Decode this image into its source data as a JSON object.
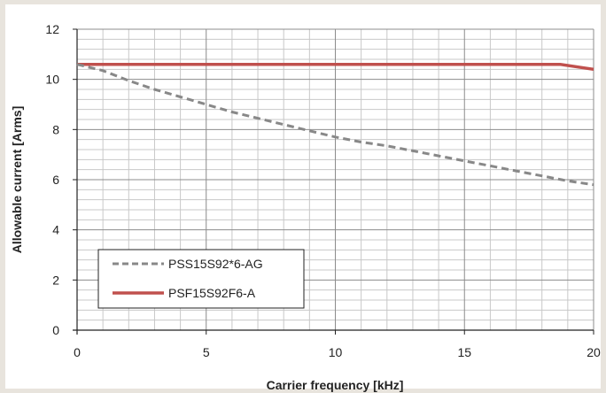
{
  "chart_data": {
    "type": "line",
    "xlabel": "Carrier frequency [kHz]",
    "ylabel": "Allowable  current [Arms]",
    "xlim": [
      0,
      20
    ],
    "ylim": [
      0,
      12
    ],
    "x_ticks": [
      "0",
      "5",
      "10",
      "15",
      "20"
    ],
    "y_ticks": [
      "0",
      "2",
      "4",
      "6",
      "8",
      "10",
      "12"
    ],
    "grid": true,
    "legend_position": "bottom-left",
    "series": [
      {
        "name": "PSS15S92*6-AG",
        "style": "dashed",
        "color": "#888888",
        "x": [
          0,
          1,
          2,
          3,
          4,
          5,
          6,
          7,
          8,
          9,
          10,
          11,
          12,
          13,
          14,
          15,
          16,
          17,
          18,
          19,
          20
        ],
        "y": [
          10.6,
          10.35,
          9.95,
          9.6,
          9.3,
          9.0,
          8.7,
          8.45,
          8.2,
          7.95,
          7.7,
          7.5,
          7.35,
          7.15,
          6.95,
          6.75,
          6.55,
          6.35,
          6.15,
          5.95,
          5.8
        ]
      },
      {
        "name": "PSF15S92F6-A",
        "style": "solid",
        "color": "#c0504d",
        "x": [
          0,
          5,
          10,
          15,
          18.7,
          20
        ],
        "y": [
          10.6,
          10.6,
          10.6,
          10.6,
          10.6,
          10.4
        ]
      }
    ]
  }
}
